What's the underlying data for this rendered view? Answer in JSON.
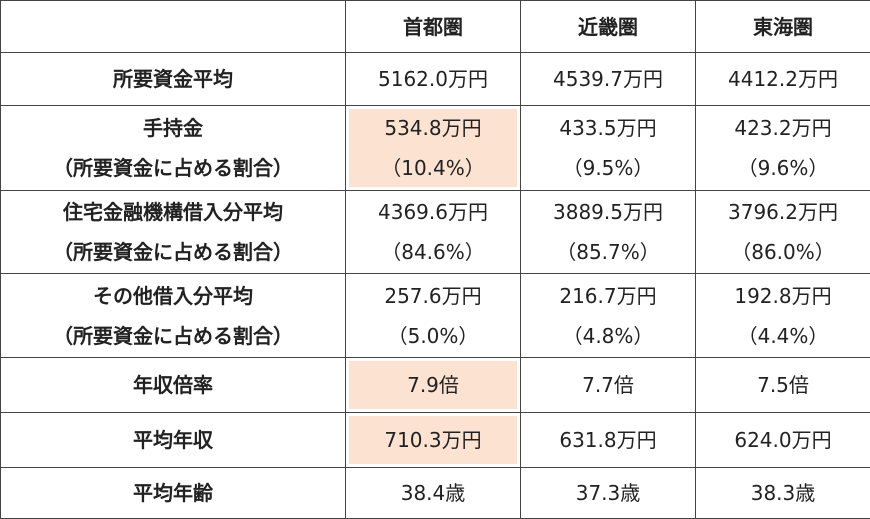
{
  "table": {
    "columns": [
      "首都圏",
      "近畿圏",
      "東海圏"
    ],
    "rows": [
      {
        "label": [
          "所要資金平均"
        ],
        "cells": [
          [
            "5162.0万円"
          ],
          [
            "4539.7万円"
          ],
          [
            "4412.2万円"
          ]
        ]
      },
      {
        "label": [
          "手持金",
          "（所要資金に占める割合）"
        ],
        "cells": [
          [
            "534.8万円",
            "（10.4%）"
          ],
          [
            "433.5万円",
            "（9.5%）"
          ],
          [
            "423.2万円",
            "（9.6%）"
          ]
        ]
      },
      {
        "label": [
          "住宅金融機構借入分平均",
          "（所要資金に占める割合）"
        ],
        "cells": [
          [
            "4369.6万円",
            "（84.6%）"
          ],
          [
            "3889.5万円",
            "（85.7%）"
          ],
          [
            "3796.2万円",
            "（86.0%）"
          ]
        ]
      },
      {
        "label": [
          "その他借入分平均",
          "（所要資金に占める割合）"
        ],
        "cells": [
          [
            "257.6万円",
            "（5.0%）"
          ],
          [
            "216.7万円",
            "（4.8%）"
          ],
          [
            "192.8万円",
            "（4.4%）"
          ]
        ]
      },
      {
        "label": [
          "年収倍率"
        ],
        "cells": [
          [
            "7.9倍"
          ],
          [
            "7.7倍"
          ],
          [
            "7.5倍"
          ]
        ]
      },
      {
        "label": [
          "平均年収"
        ],
        "cells": [
          [
            "710.3万円"
          ],
          [
            "631.8万円"
          ],
          [
            "624.0万円"
          ]
        ]
      },
      {
        "label": [
          "平均年齢"
        ],
        "cells": [
          [
            "38.4歳"
          ],
          [
            "37.3歳"
          ],
          [
            "38.3歳"
          ]
        ]
      }
    ]
  }
}
